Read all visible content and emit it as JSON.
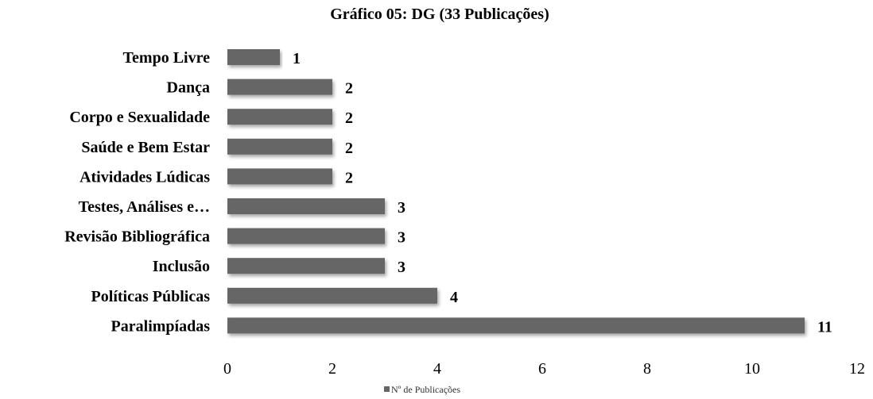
{
  "chart_data": {
    "type": "bar",
    "orientation": "horizontal",
    "title": "Gráfico 05: DG (33 Publicações)",
    "categories": [
      "Tempo Livre",
      "Dança",
      "Corpo e Sexualidade",
      "Saúde e Bem Estar",
      "Atividades Lúdicas",
      "Testes, Análises e…",
      "Revisão Bibliográfica",
      "Inclusão",
      "Políticas Públicas",
      "Paralimpíadas"
    ],
    "series": [
      {
        "name": "Nº de Publicações",
        "values": [
          1,
          2,
          2,
          2,
          2,
          3,
          3,
          3,
          4,
          11
        ],
        "color": "#666666"
      }
    ],
    "xlim": [
      0,
      12
    ],
    "xticks": [
      "0",
      "2",
      "4",
      "6",
      "8",
      "10",
      "12"
    ],
    "xlabel": "",
    "ylabel": "",
    "grid": false,
    "legend": "bottom"
  }
}
